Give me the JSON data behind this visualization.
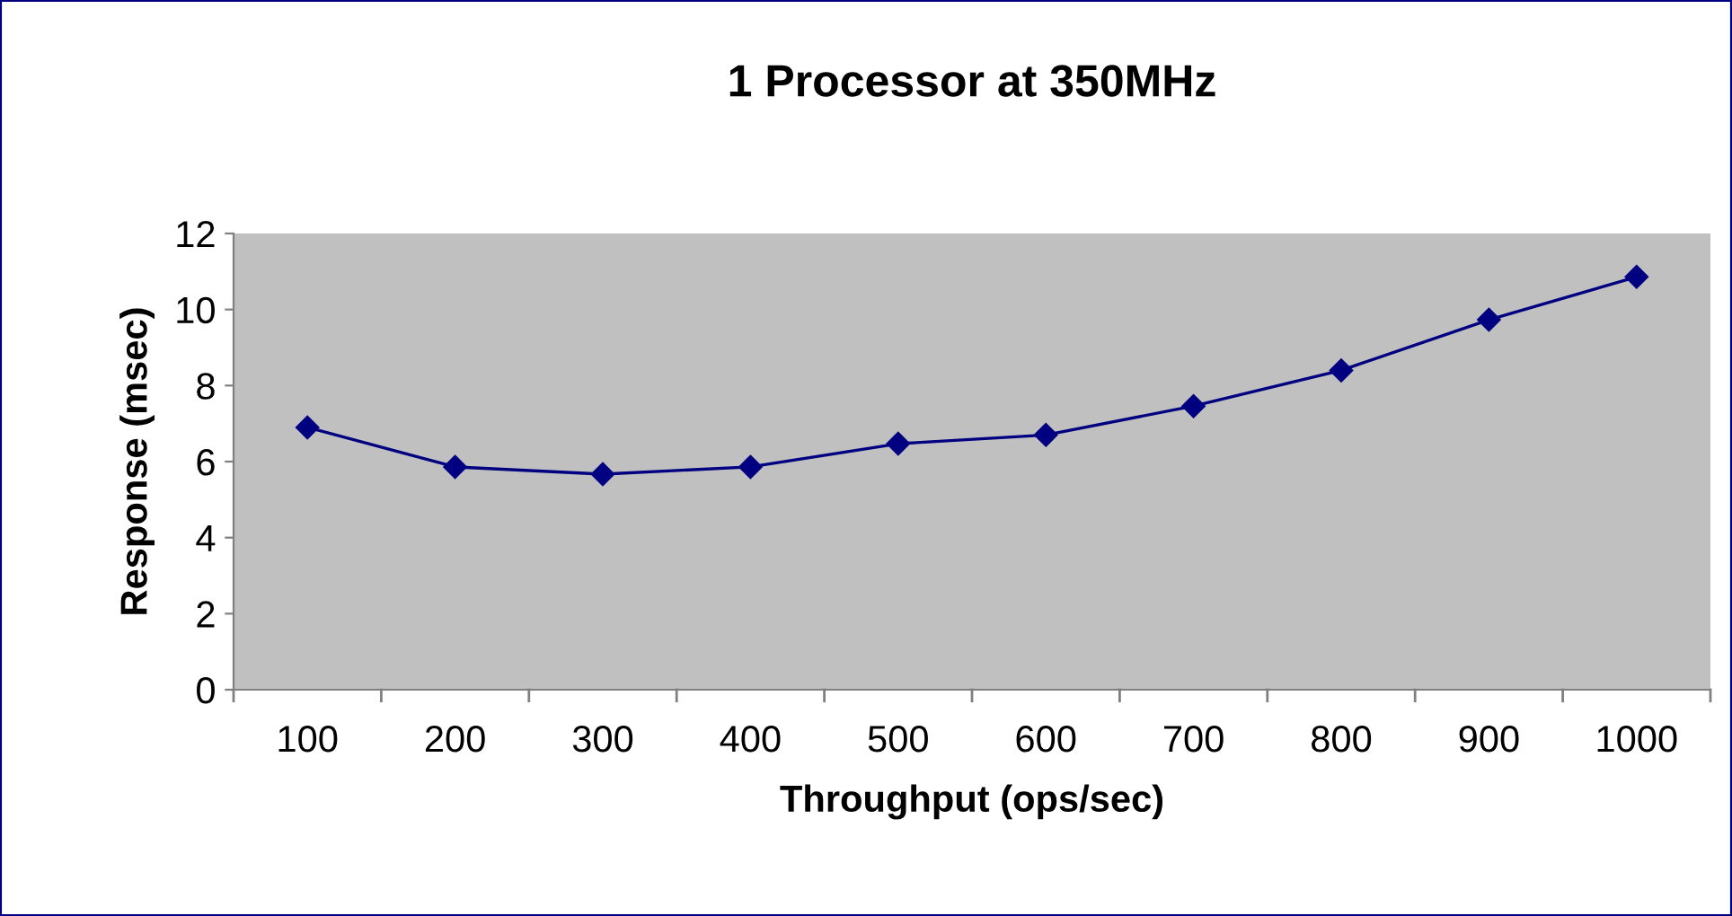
{
  "chart_data": {
    "type": "line",
    "title": "1 Processor at 350MHz",
    "xlabel": "Throughput (ops/sec)",
    "ylabel": "Response (msec)",
    "categories": [
      "100",
      "200",
      "300",
      "400",
      "500",
      "600",
      "700",
      "800",
      "900",
      "1000"
    ],
    "series": [
      {
        "color": "#000080",
        "values": [
          6.9,
          5.86,
          5.67,
          5.86,
          6.47,
          6.7,
          7.46,
          8.4,
          9.73,
          10.86
        ]
      }
    ],
    "ylim": [
      0,
      12
    ],
    "yticks": [
      0,
      2,
      4,
      6,
      8,
      10,
      12
    ],
    "grid": false,
    "legend": false,
    "marker": "diamond",
    "line_style": "solid"
  }
}
